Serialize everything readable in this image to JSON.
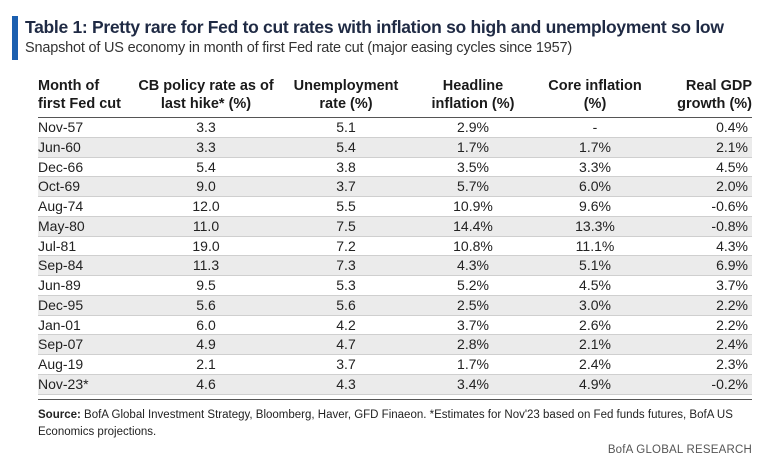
{
  "header": {
    "title": "Table 1: Pretty rare for Fed to cut rates with inflation so high and unemployment so low",
    "subtitle": "Snapshot of US economy in month of first Fed rate cut (major easing cycles since 1957)"
  },
  "table": {
    "columns": [
      [
        "Month of",
        "first Fed cut"
      ],
      [
        "CB policy rate as of",
        "last hike* (%)"
      ],
      [
        "Unemployment",
        "rate (%)"
      ],
      [
        "Headline",
        "inflation (%)"
      ],
      [
        "Core inflation",
        "(%)"
      ],
      [
        "Real GDP",
        "growth (%)"
      ]
    ],
    "rows": [
      [
        "Nov-57",
        "3.3",
        "5.1",
        "2.9%",
        "-",
        "0.4%"
      ],
      [
        "Jun-60",
        "3.3",
        "5.4",
        "1.7%",
        "1.7%",
        "2.1%"
      ],
      [
        "Dec-66",
        "5.4",
        "3.8",
        "3.5%",
        "3.3%",
        "4.5%"
      ],
      [
        "Oct-69",
        "9.0",
        "3.7",
        "5.7%",
        "6.0%",
        "2.0%"
      ],
      [
        "Aug-74",
        "12.0",
        "5.5",
        "10.9%",
        "9.6%",
        "-0.6%"
      ],
      [
        "May-80",
        "11.0",
        "7.5",
        "14.4%",
        "13.3%",
        "-0.8%"
      ],
      [
        "Jul-81",
        "19.0",
        "7.2",
        "10.8%",
        "11.1%",
        "4.3%"
      ],
      [
        "Sep-84",
        "11.3",
        "7.3",
        "4.3%",
        "5.1%",
        "6.9%"
      ],
      [
        "Jun-89",
        "9.5",
        "5.3",
        "5.2%",
        "4.5%",
        "3.7%"
      ],
      [
        "Dec-95",
        "5.6",
        "5.6",
        "2.5%",
        "3.0%",
        "2.2%"
      ],
      [
        "Jan-01",
        "6.0",
        "4.2",
        "3.7%",
        "2.6%",
        "2.2%"
      ],
      [
        "Sep-07",
        "4.9",
        "4.7",
        "2.8%",
        "2.1%",
        "2.4%"
      ],
      [
        "Aug-19",
        "2.1",
        "3.7",
        "1.7%",
        "2.4%",
        "2.3%"
      ],
      [
        "Nov-23*",
        "4.6",
        "4.3",
        "3.4%",
        "4.9%",
        "-0.2%"
      ]
    ]
  },
  "footer": {
    "source_label": "Source:",
    "source_text": "BofA Global Investment Strategy, Bloomberg, Haver, GFD Finaeon. *Estimates for Nov'23 based on Fed funds futures, BofA US Economics  projections.",
    "brand": "BofA GLOBAL RESEARCH"
  },
  "colors": {
    "accent": "#1b5fb0",
    "shade": "#ebebeb"
  }
}
